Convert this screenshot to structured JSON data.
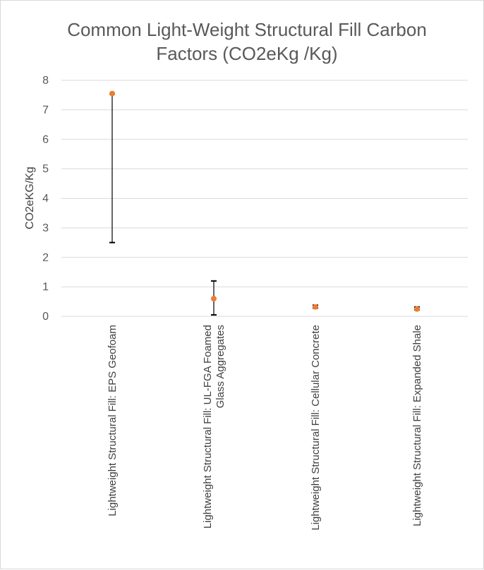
{
  "chart_data": {
    "type": "scatter",
    "title_lines": [
      "Common Light-Weight Structural Fill Carbon",
      "Factors (CO2eKg /Kg)"
    ],
    "xlabel": "",
    "ylabel": "CO2eKG/Kg",
    "ylim": [
      0,
      8
    ],
    "yticks": [
      "0",
      "1",
      "2",
      "3",
      "4",
      "5",
      "6",
      "7",
      "8"
    ],
    "grid": true,
    "legend": "none",
    "categories": [
      [
        "Lightweight Structural Fill: EPS Geofoam"
      ],
      [
        "Lightweight Structural Fill: UL-FGA Foamed",
        "Glass Aggregates"
      ],
      [
        "Lightweight Structural Fill: Cellular Concrete"
      ],
      [
        "Lightweight Structural Fill: Expanded Shale"
      ]
    ],
    "series": [
      {
        "values": [
          7.55,
          0.6,
          0.32,
          0.25
        ],
        "error_low": [
          2.5,
          0.05,
          0.28,
          0.22
        ],
        "error_high": [
          7.55,
          1.2,
          0.38,
          0.32
        ]
      }
    ],
    "colors": {
      "marker": "#ed7d31",
      "errorbar": "#000000",
      "grid": "#d9d9d9",
      "text": "#595959"
    }
  }
}
